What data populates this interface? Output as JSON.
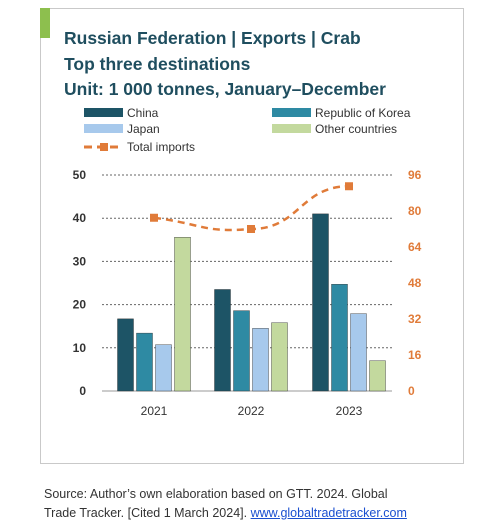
{
  "title": {
    "line1": "Russian Federation | Exports | Crab",
    "line2": "Top three destinations",
    "line3": "Unit: 1 000 tonnes, January–December"
  },
  "colors": {
    "accent": "#8dbf4e",
    "title": "#1f4e5f",
    "right_axis": "#e07b39"
  },
  "chart_data": {
    "type": "bar",
    "categories": [
      "2021",
      "2022",
      "2023"
    ],
    "series": [
      {
        "name": "China",
        "values": [
          16.7,
          23.5,
          41.0
        ],
        "color": "#1d5466",
        "axis": "left"
      },
      {
        "name": "Republic of Korea",
        "values": [
          13.4,
          18.6,
          24.7
        ],
        "color": "#2e8aa3",
        "axis": "left"
      },
      {
        "name": "Japan",
        "values": [
          10.7,
          14.5,
          17.9
        ],
        "color": "#a7c9ec",
        "axis": "left"
      },
      {
        "name": "Other countries",
        "values": [
          35.6,
          15.8,
          7.0
        ],
        "color": "#c3d99e",
        "axis": "left"
      },
      {
        "name": "Total imports",
        "type": "line",
        "values": [
          77,
          72,
          91
        ],
        "color": "#e07b39",
        "axis": "right"
      }
    ],
    "y_left": {
      "min": 0,
      "max": 50,
      "ticks": [
        "0",
        "10",
        "20",
        "30",
        "40",
        "50"
      ]
    },
    "y_right": {
      "min": 0,
      "max": 96,
      "ticks": [
        "0",
        "16",
        "32",
        "48",
        "64",
        "80",
        "96"
      ]
    },
    "legend_position": "top",
    "grid": true
  },
  "source": {
    "line1": "Source: Author’s own elaboration based on GTT. 2024. Global",
    "line2_prefix": "Trade Tracker. [Cited 1 March 2024]. ",
    "link": "www.globaltradetracker.com"
  }
}
